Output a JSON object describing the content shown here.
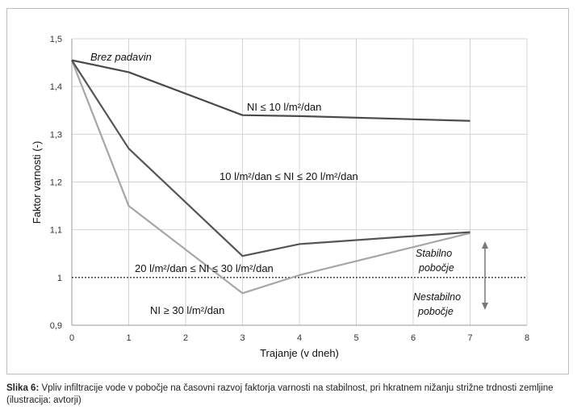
{
  "chart_data": {
    "type": "line",
    "xlabel": "Trajanje (v dneh)",
    "ylabel": "Faktor varnosti (-)",
    "xlim": [
      0,
      8
    ],
    "ylim": [
      0.9,
      1.5
    ],
    "x_ticks": [
      "0",
      "1",
      "2",
      "3",
      "4",
      "5",
      "6",
      "7",
      "8"
    ],
    "y_ticks": [
      "0,9",
      "1",
      "1,1",
      "1,2",
      "1,3",
      "1,4",
      "1,5"
    ],
    "grid": true,
    "series": [
      {
        "name": "NI ≤ 10 l/m²/dan",
        "color": "#4a4a4a",
        "x": [
          0,
          1,
          3,
          4,
          7
        ],
        "y": [
          1.455,
          1.43,
          1.34,
          1.338,
          1.328
        ]
      },
      {
        "name": "10 l/m²/dan  ≤ NI ≤ 20 l/m²/dan",
        "color": "#555555",
        "x": [
          0,
          1,
          3,
          4,
          7
        ],
        "y": [
          1.455,
          1.27,
          1.045,
          1.07,
          1.095
        ]
      },
      {
        "name": "20 l/m²/dan ≤ NI ≤ 30 l/m²/dan",
        "color": "#a6a6a6",
        "x": [
          0,
          1,
          3,
          4,
          7
        ],
        "y": [
          1.455,
          1.15,
          0.967,
          1.005,
          1.093
        ]
      }
    ],
    "threshold": {
      "y": 1.0,
      "style": "dotted"
    },
    "annotations": {
      "brez_padavin": "Brez padavin",
      "ni_label_1": "NI ≤ 10 l/m²/dan",
      "ni_label_2": "10 l/m²/dan  ≤ NI ≤ 20 l/m²/dan",
      "ni_label_3": "20 l/m²/dan ≤ NI ≤ 30 l/m²/dan",
      "ni_label_4": "NI ≥ 30 l/m²/dan",
      "stabilno_1": "Stabilno",
      "stabilno_2": "pobočje",
      "nestabilno_1": "Nestabilno",
      "nestabilno_2": "pobočje"
    }
  },
  "caption": {
    "bold": "Slika 6:",
    "text": " Vpliv infiltracije vode v pobočje na časovni razvoj faktorja varnosti na stabilnost, pri hkratnem nižanju strižne trdnosti zemljine (ilustracija: avtorji)"
  }
}
